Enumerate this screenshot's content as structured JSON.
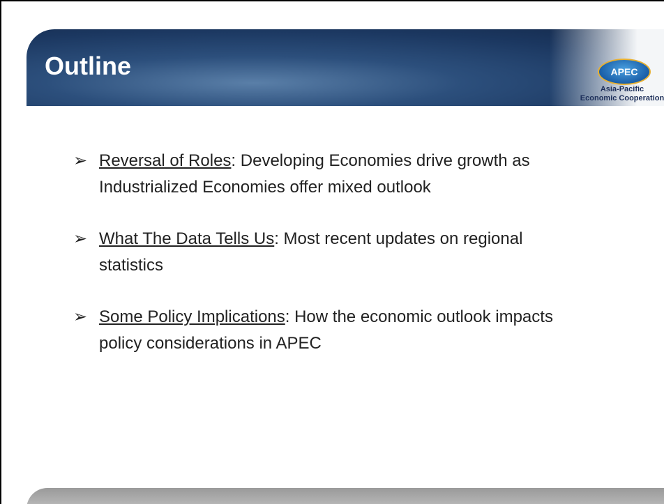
{
  "header": {
    "title": "Outline"
  },
  "logo": {
    "name": "APEC",
    "line1": "Asia-Pacific",
    "line2": "Economic Cooperation"
  },
  "bullets": [
    {
      "term": "Reversal of Roles",
      "text": ": Developing Economies drive growth as Industrialized Economies offer mixed outlook"
    },
    {
      "term": "What The Data Tells Us",
      "text": ": Most recent updates on regional statistics"
    },
    {
      "term": "Some Policy Implications",
      "text": ": How the economic outlook impacts policy considerations in APEC"
    }
  ]
}
